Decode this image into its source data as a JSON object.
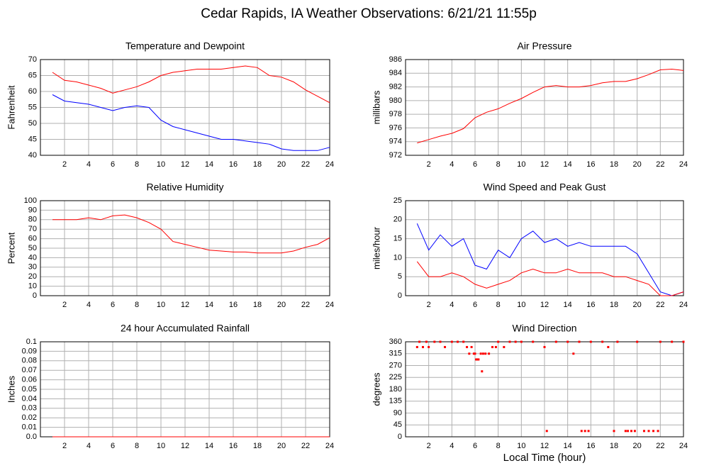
{
  "title": "Cedar Rapids, IA Weather Observations: 6/21/21 11:55p",
  "chart_data": [
    {
      "type": "line",
      "title": "Temperature and Dewpoint",
      "ylabel": "Fahrenheit",
      "x": [
        1,
        2,
        3,
        4,
        5,
        6,
        7,
        8,
        9,
        10,
        11,
        12,
        13,
        14,
        15,
        16,
        17,
        18,
        19,
        20,
        21,
        22,
        23,
        24
      ],
      "series": [
        {
          "color": "#ff0000",
          "values": [
            66,
            63.5,
            63,
            62,
            61,
            59.5,
            60.5,
            61.5,
            63,
            65,
            66,
            66.5,
            67,
            67,
            67,
            67.5,
            68,
            67.5,
            65,
            64.5,
            63,
            60.5,
            58.5,
            56.5
          ]
        },
        {
          "color": "#0000ff",
          "values": [
            59,
            57,
            56.5,
            56,
            55,
            54,
            55,
            55.5,
            55,
            51,
            49,
            48,
            47,
            46,
            45,
            45,
            44.5,
            44,
            43.5,
            42,
            41.5,
            41.5,
            41.5,
            42.5
          ]
        }
      ],
      "xlim": [
        0,
        24
      ],
      "xticks": [
        2,
        4,
        6,
        8,
        10,
        12,
        14,
        16,
        18,
        20,
        22,
        24
      ],
      "ylim": [
        40,
        70
      ],
      "yticks": [
        40,
        45,
        50,
        55,
        60,
        65,
        70
      ],
      "grid": true
    },
    {
      "type": "line",
      "title": "Air Pressure",
      "ylabel": "millibars",
      "x": [
        1,
        2,
        3,
        4,
        5,
        6,
        7,
        8,
        9,
        10,
        11,
        12,
        13,
        14,
        15,
        16,
        17,
        18,
        19,
        20,
        21,
        22,
        23,
        24
      ],
      "series": [
        {
          "color": "#ff0000",
          "values": [
            973.8,
            974.3,
            974.8,
            975.2,
            975.9,
            977.5,
            978.3,
            978.8,
            979.6,
            980.3,
            981.2,
            982,
            982.2,
            982,
            982,
            982.2,
            982.6,
            982.8,
            982.8,
            983.2,
            983.8,
            984.5,
            984.6,
            984.4
          ]
        }
      ],
      "xlim": [
        0,
        24
      ],
      "xticks": [
        2,
        4,
        6,
        8,
        10,
        12,
        14,
        16,
        18,
        20,
        22,
        24
      ],
      "ylim": [
        972,
        986
      ],
      "yticks": [
        972,
        974,
        976,
        978,
        980,
        982,
        984,
        986
      ],
      "grid": true
    },
    {
      "type": "line",
      "title": "Relative Humidity",
      "ylabel": "Percent",
      "x": [
        1,
        2,
        3,
        4,
        5,
        6,
        7,
        8,
        9,
        10,
        11,
        12,
        13,
        14,
        15,
        16,
        17,
        18,
        19,
        20,
        21,
        22,
        23,
        24
      ],
      "series": [
        {
          "color": "#ff0000",
          "values": [
            80,
            80,
            80,
            82,
            80,
            84,
            85,
            82,
            77,
            70,
            57,
            54,
            51,
            48,
            47,
            46,
            46,
            45,
            45,
            45,
            47,
            51,
            54,
            61
          ]
        }
      ],
      "xlim": [
        0,
        24
      ],
      "xticks": [
        2,
        4,
        6,
        8,
        10,
        12,
        14,
        16,
        18,
        20,
        22,
        24
      ],
      "ylim": [
        0,
        100
      ],
      "yticks": [
        0,
        10,
        20,
        30,
        40,
        50,
        60,
        70,
        80,
        90,
        100
      ],
      "grid": true
    },
    {
      "type": "line",
      "title": "Wind Speed and Peak Gust",
      "ylabel": "miles/hour",
      "x": [
        1,
        2,
        3,
        4,
        5,
        6,
        7,
        8,
        9,
        10,
        11,
        12,
        13,
        14,
        15,
        16,
        17,
        18,
        19,
        20,
        21,
        22,
        23,
        24
      ],
      "series": [
        {
          "color": "#0000ff",
          "values": [
            19,
            12,
            16,
            13,
            15,
            8,
            7,
            12,
            10,
            15,
            17,
            14,
            15,
            13,
            14,
            13,
            13,
            13,
            13,
            11,
            6,
            1,
            0,
            1
          ]
        },
        {
          "color": "#ff0000",
          "values": [
            9,
            5,
            5,
            6,
            5,
            3,
            2,
            3,
            4,
            6,
            7,
            6,
            6,
            7,
            6,
            6,
            6,
            5,
            5,
            4,
            3,
            0,
            0,
            1
          ]
        }
      ],
      "xlim": [
        0,
        24
      ],
      "xticks": [
        2,
        4,
        6,
        8,
        10,
        12,
        14,
        16,
        18,
        20,
        22,
        24
      ],
      "ylim": [
        0,
        25
      ],
      "yticks": [
        0,
        5,
        10,
        15,
        20,
        25
      ],
      "grid": true
    },
    {
      "type": "line",
      "title": "24 hour Accumulated Rainfall",
      "ylabel": "Inches",
      "x": [
        1,
        2,
        3,
        4,
        5,
        6,
        7,
        8,
        9,
        10,
        11,
        12,
        13,
        14,
        15,
        16,
        17,
        18,
        19,
        20,
        21,
        22,
        23,
        24
      ],
      "series": [
        {
          "color": "#ff0000",
          "values": [
            0,
            0,
            0,
            0,
            0,
            0,
            0,
            0,
            0,
            0,
            0,
            0,
            0,
            0,
            0,
            0,
            0,
            0,
            0,
            0,
            0,
            0,
            0,
            0
          ]
        }
      ],
      "xlim": [
        0,
        24
      ],
      "xticks": [
        2,
        4,
        6,
        8,
        10,
        12,
        14,
        16,
        18,
        20,
        22,
        24
      ],
      "ylim": [
        0,
        0.1
      ],
      "yticks": [
        {
          "value": 0,
          "label": "0.0"
        },
        0.01,
        0.02,
        0.03,
        0.04,
        0.05,
        0.06,
        0.07,
        0.08,
        0.09,
        0.1
      ],
      "grid": true
    },
    {
      "type": "scatter",
      "title": "Wind Direction",
      "ylabel": "degrees",
      "xlabel": "Local Time (hour)",
      "x": [
        1,
        1.2,
        1.5,
        1.8,
        2,
        2.5,
        3,
        3.4,
        4,
        4.5,
        5,
        5.3,
        5.5,
        5.7,
        5.9,
        6,
        6.1,
        6.2,
        6.3,
        6.5,
        6.6,
        6.7,
        6.9,
        7.2,
        7.5,
        7.8,
        8,
        8.5,
        9,
        9.5,
        10,
        11,
        12,
        12.2,
        13,
        14,
        14.5,
        15,
        15.2,
        15.5,
        15.8,
        16,
        17,
        17.5,
        18,
        18.3,
        19,
        19.2,
        19.5,
        19.8,
        20,
        20.6,
        21,
        21.4,
        21.8,
        22,
        23,
        24
      ],
      "series": [
        {
          "color": "#ff0000",
          "values": [
            340,
            360,
            340,
            360,
            340,
            360,
            360,
            340,
            360,
            360,
            360,
            340,
            315,
            340,
            315,
            315,
            293,
            293,
            293,
            315,
            248,
            315,
            315,
            315,
            340,
            340,
            360,
            340,
            360,
            360,
            360,
            360,
            340,
            22,
            360,
            360,
            315,
            360,
            22,
            22,
            22,
            360,
            360,
            340,
            22,
            360,
            22,
            22,
            22,
            22,
            360,
            22,
            22,
            22,
            22,
            360,
            360,
            360
          ]
        }
      ],
      "xlim": [
        0,
        24
      ],
      "xticks": [
        2,
        4,
        6,
        8,
        10,
        12,
        14,
        16,
        18,
        20,
        22,
        24
      ],
      "ylim": [
        0,
        360
      ],
      "yticks": [
        0,
        45,
        90,
        135,
        180,
        225,
        270,
        315,
        360
      ],
      "grid": true
    }
  ]
}
